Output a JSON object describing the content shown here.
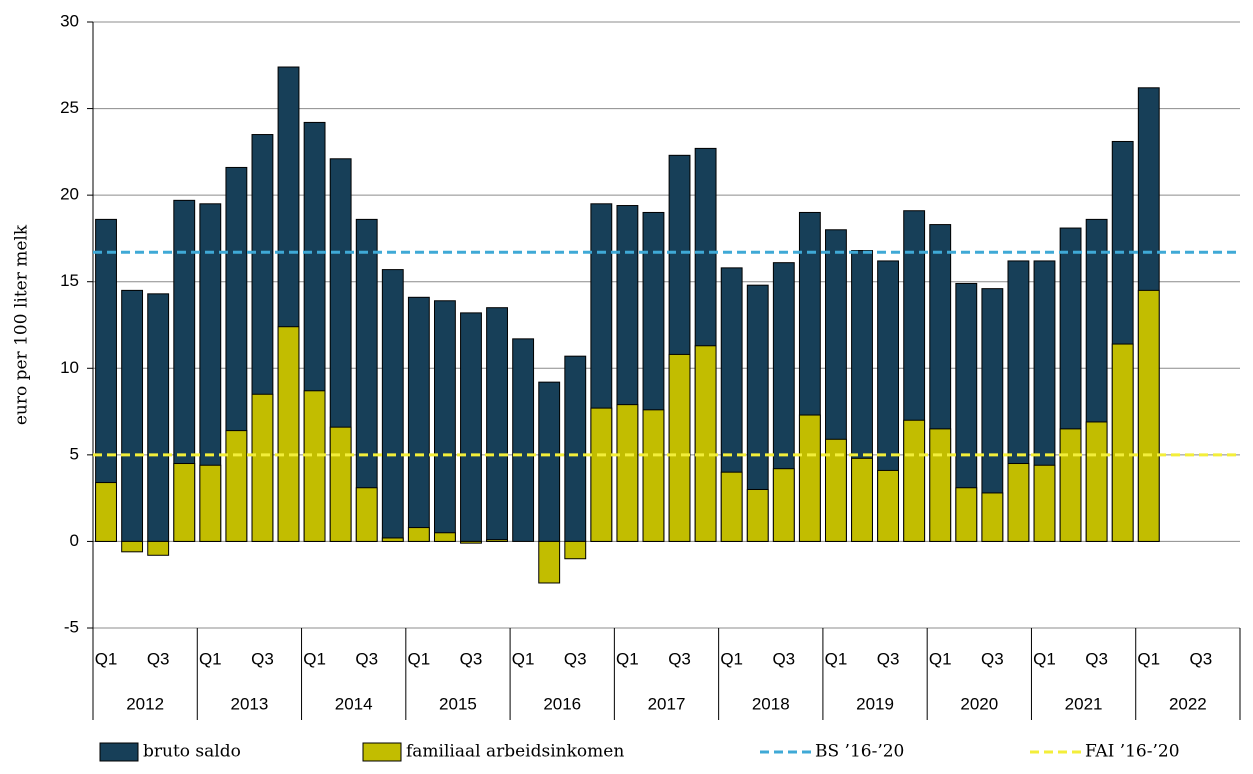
{
  "chart_data": {
    "type": "bar",
    "y_label": "euro per 100 liter melk",
    "categories": [
      "Q1",
      null,
      "Q3",
      null,
      "Q1",
      null,
      "Q3",
      null,
      "Q1",
      null,
      "Q3",
      null,
      "Q1",
      null,
      "Q3",
      null,
      "Q1",
      null,
      "Q3",
      null,
      "Q1",
      null,
      "Q3",
      null,
      "Q1",
      null,
      "Q3",
      null,
      "Q1",
      null,
      "Q3",
      null,
      "Q1",
      null,
      "Q3",
      null,
      "Q1",
      null,
      "Q3",
      null,
      "Q1",
      null,
      "Q3",
      null
    ],
    "groups": [
      "2012",
      "2013",
      "2014",
      "2015",
      "2016",
      "2017",
      "2018",
      "2019",
      "2020",
      "2021",
      "2022"
    ],
    "series": [
      {
        "name": "bruto saldo",
        "color": "#173f58",
        "values": [
          18.6,
          14.5,
          14.3,
          19.7,
          19.5,
          21.6,
          23.5,
          27.4,
          24.2,
          22.1,
          18.6,
          15.7,
          14.1,
          13.9,
          13.2,
          13.5,
          11.7,
          9.2,
          10.7,
          19.5,
          19.4,
          19.0,
          22.3,
          22.7,
          15.8,
          14.8,
          16.1,
          19.0,
          18.0,
          16.8,
          16.2,
          19.1,
          18.3,
          14.9,
          14.6,
          16.2,
          16.2,
          18.1,
          18.6,
          23.1,
          26.2,
          null,
          null,
          null
        ]
      },
      {
        "name": "familiaal arbeidsinkomen",
        "color": "#c2bd00",
        "values": [
          3.4,
          -0.6,
          -0.8,
          4.5,
          4.4,
          6.4,
          8.5,
          12.4,
          8.7,
          6.6,
          3.1,
          0.2,
          0.8,
          0.5,
          -0.1,
          0.1,
          0.0,
          -2.4,
          -1.0,
          7.7,
          7.9,
          7.6,
          10.8,
          11.3,
          4.0,
          3.0,
          4.2,
          7.3,
          5.9,
          4.8,
          4.1,
          7.0,
          6.5,
          3.1,
          2.8,
          4.5,
          4.4,
          6.5,
          6.9,
          11.4,
          14.5,
          null,
          null,
          null
        ]
      }
    ],
    "reference_lines": [
      {
        "name": "BS ’16-’20",
        "value": 16.7,
        "color": "#3fa9d6"
      },
      {
        "name": "FAI ’16-’20",
        "value": 5.0,
        "color": "#f3ee3a"
      }
    ],
    "ylim": [
      -5,
      30
    ],
    "yticks": [
      -5,
      0,
      5,
      10,
      15,
      20,
      25,
      30
    ],
    "grid": true
  }
}
